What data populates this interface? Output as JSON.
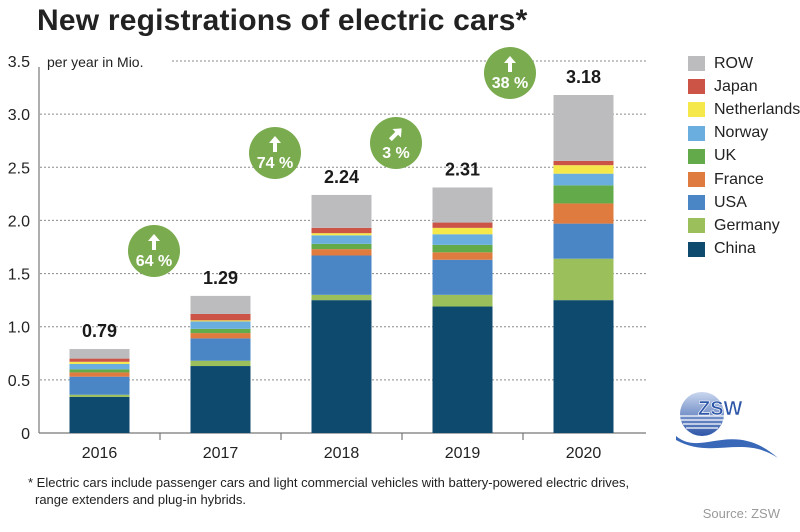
{
  "title": "New registrations of electric cars*",
  "unit_label": "per year in Mio.",
  "footnote_lines": [
    "* Electric cars include passenger cars and light commercial vehicles with battery-powered electric drives,",
    "range extenders and plug-in hybrids."
  ],
  "source": "Source: ZSW",
  "logo_text": "ZSW",
  "chart_data": {
    "type": "bar",
    "stacked": true,
    "title": "New registrations of electric cars*",
    "ylabel": "per year in Mio.",
    "xlabel": "",
    "ylim": [
      0,
      3.5
    ],
    "yticks": [
      0,
      0.5,
      1.0,
      1.5,
      2.0,
      2.5,
      3.0,
      3.5
    ],
    "ytick_labels": [
      "0",
      "0.5",
      "1.0",
      "1.5",
      "2.0",
      "2.5",
      "3.0",
      "3.5"
    ],
    "grid": true,
    "legend_position": "right",
    "categories": [
      "2016",
      "2017",
      "2018",
      "2019",
      "2020"
    ],
    "totals": [
      0.79,
      1.29,
      2.24,
      2.31,
      3.18
    ],
    "total_labels": [
      "0.79",
      "1.29",
      "2.24",
      "2.31",
      "3.18"
    ],
    "series": [
      {
        "name": "China",
        "color": "#0d4a6e",
        "values": [
          0.34,
          0.63,
          1.25,
          1.19,
          1.25
        ]
      },
      {
        "name": "Germany",
        "color": "#9bbf5a",
        "values": [
          0.02,
          0.05,
          0.05,
          0.11,
          0.39
        ]
      },
      {
        "name": "USA",
        "color": "#4a86c6",
        "values": [
          0.17,
          0.21,
          0.37,
          0.33,
          0.33
        ]
      },
      {
        "name": "France",
        "color": "#e07b3f",
        "values": [
          0.04,
          0.05,
          0.06,
          0.07,
          0.19
        ]
      },
      {
        "name": "UK",
        "color": "#62aa4a",
        "values": [
          0.03,
          0.04,
          0.05,
          0.07,
          0.17
        ]
      },
      {
        "name": "Norway",
        "color": "#6aaee0",
        "values": [
          0.05,
          0.07,
          0.08,
          0.1,
          0.11
        ]
      },
      {
        "name": "Netherlands",
        "color": "#f4e84a",
        "values": [
          0.02,
          0.01,
          0.02,
          0.06,
          0.08
        ]
      },
      {
        "name": "Japan",
        "color": "#cc5446",
        "values": [
          0.03,
          0.06,
          0.05,
          0.05,
          0.04
        ]
      },
      {
        "name": "ROW",
        "color": "#bcbcbe",
        "values": [
          0.09,
          0.17,
          0.31,
          0.33,
          0.62
        ]
      }
    ],
    "legend_order": [
      "ROW",
      "Japan",
      "Netherlands",
      "Norway",
      "UK",
      "France",
      "USA",
      "Germany",
      "China"
    ],
    "growth_annotations": [
      {
        "between": [
          "2016",
          "2017"
        ],
        "label": "64 %",
        "arrow": "up"
      },
      {
        "between": [
          "2017",
          "2018"
        ],
        "label": "74 %",
        "arrow": "up"
      },
      {
        "between": [
          "2018",
          "2019"
        ],
        "label": "3 %",
        "arrow": "up-right"
      },
      {
        "between": [
          "2019",
          "2020"
        ],
        "label": "38 %",
        "arrow": "up"
      }
    ],
    "annotation_color": "#7aab4e"
  }
}
